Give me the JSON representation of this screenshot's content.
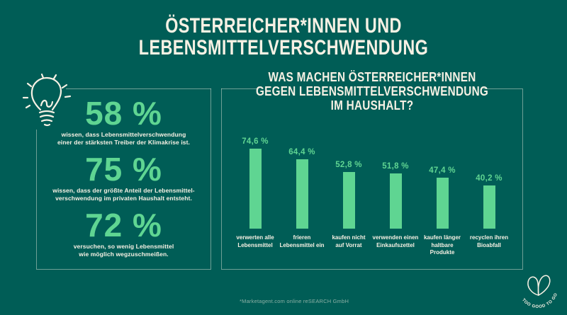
{
  "title": {
    "line1": "ÖSTERREICHER*INNEN UND",
    "line2": "LEBENSMITTELVERSCHWENDUNG"
  },
  "stats_panel": {
    "items": [
      {
        "value": "58 %",
        "caption_line1": "wissen, dass Lebensmittelverschwendung",
        "caption_line2": "einer der stärksten Treiber der Klimakrise ist."
      },
      {
        "value": "75 %",
        "caption_line1": "wissen, dass der größte Anteil der Lebensmittel-",
        "caption_line2": "verschwendung im privaten Haushalt entsteht."
      },
      {
        "value": "72 %",
        "caption_line1": "versuchen, so wenig Lebensmittel",
        "caption_line2": "wie möglich wegzuschmeißen."
      }
    ]
  },
  "chart_panel": {
    "heading": {
      "line1": "WAS MACHEN ÖSTERREICHER*INNEN",
      "line2": "GEGEN LEBENSMITTELVERSCHWENDUNG",
      "line3": "IM HAUSHALT?"
    }
  },
  "chart_data": {
    "type": "bar",
    "title": "Was machen Österreicher*innen gegen Lebensmittelverschwendung im Haushalt?",
    "categories": [
      "verwerten alle Lebensmittel",
      "frieren Lebensmittel ein",
      "kaufen nicht auf Vorrat",
      "verwenden einen Einkaufszettel",
      "kaufen länger haltbare Produkte",
      "recyclen ihren Bioabfall"
    ],
    "category_lines": [
      [
        "verwerten alle",
        "Lebensmittel"
      ],
      [
        "frieren",
        "Lebensmittel ein"
      ],
      [
        "kaufen nicht",
        "auf Vorrat"
      ],
      [
        "verwenden einen",
        "Einkaufszettel"
      ],
      [
        "kaufen länger",
        "haltbare Produkte"
      ],
      [
        "recyclen ihren",
        "Bioabfall"
      ]
    ],
    "values": [
      74.6,
      64.4,
      52.8,
      51.8,
      47.4,
      40.2
    ],
    "value_labels": [
      "74,6 %",
      "64,4 %",
      "52,8 %",
      "51,8 %",
      "47,4 %",
      "40,2 %"
    ],
    "xlabel": "",
    "ylabel": "",
    "ylim": [
      0,
      100
    ],
    "grid": false,
    "legend": "none",
    "bar_color": "#5FD592"
  },
  "icons": {
    "lightbulb": "lightbulb-doodle-icon",
    "logo_mark": "too-good-to-go-leaves-icon"
  },
  "footer": {
    "source": "*Marketagent.com online reSEARCH GmbH"
  },
  "logo": {
    "text": "TOO GOOD TO GO"
  },
  "colors": {
    "background": "#005D56",
    "accent_green": "#5FD592",
    "cream": "#F7F1E4",
    "border": "rgba(247,241,228,0.45)",
    "dim_text": "rgba(247,241,228,0.55)"
  }
}
